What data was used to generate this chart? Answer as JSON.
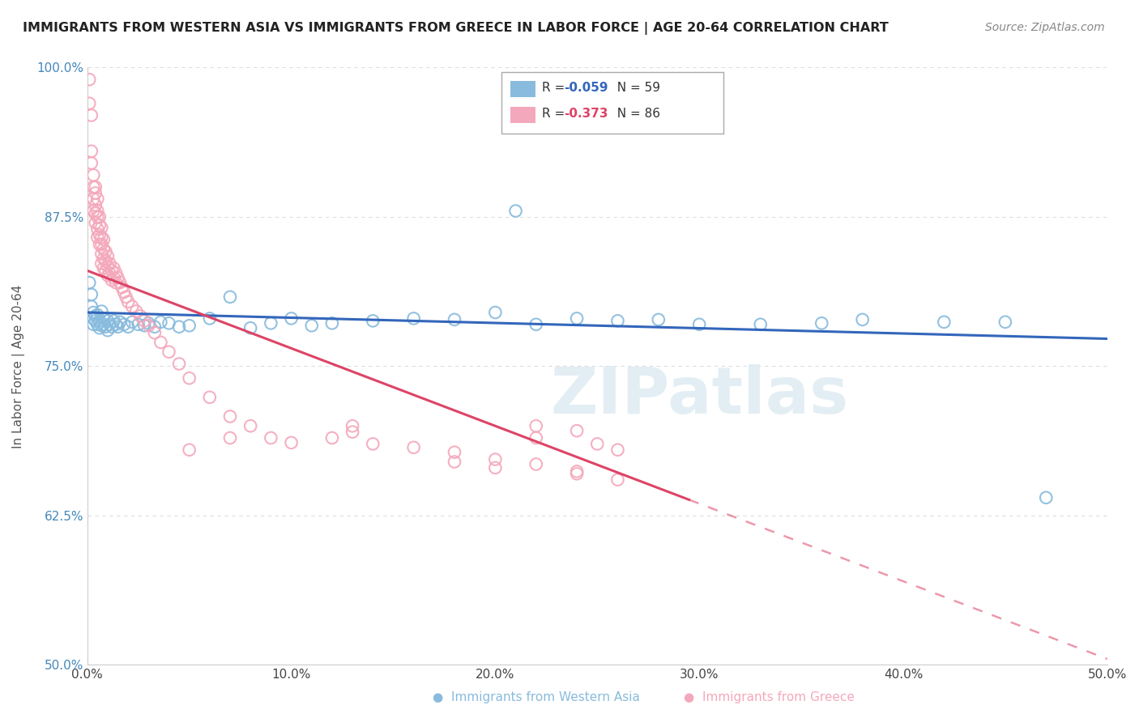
{
  "title": "IMMIGRANTS FROM WESTERN ASIA VS IMMIGRANTS FROM GREECE IN LABOR FORCE | AGE 20-64 CORRELATION CHART",
  "source": "Source: ZipAtlas.com",
  "ylabel": "In Labor Force | Age 20-64",
  "xlim": [
    0.0,
    0.5
  ],
  "ylim": [
    0.5,
    1.0
  ],
  "xticklabels": [
    "0.0%",
    "10.0%",
    "20.0%",
    "30.0%",
    "40.0%",
    "50.0%"
  ],
  "yticklabels": [
    "50.0%",
    "62.5%",
    "75.0%",
    "87.5%",
    "100.0%"
  ],
  "legend_r_n": [
    [
      "R = -0.059",
      "N = 59"
    ],
    [
      "R = -0.373",
      "N = 86"
    ]
  ],
  "color_blue": "#88bbdd",
  "color_pink": "#f4a8bb",
  "color_blue_line": "#3366bb",
  "color_pink_line": "#dd4466",
  "watermark": "ZIPatlas",
  "grid_color": "#dddddd",
  "background_color": "#ffffff",
  "blue_x": [
    0.001,
    0.002,
    0.002,
    0.003,
    0.003,
    0.003,
    0.004,
    0.004,
    0.005,
    0.005,
    0.006,
    0.006,
    0.007,
    0.007,
    0.008,
    0.008,
    0.009,
    0.01,
    0.01,
    0.011,
    0.012,
    0.013,
    0.014,
    0.015,
    0.016,
    0.018,
    0.02,
    0.022,
    0.025,
    0.028,
    0.03,
    0.033,
    0.036,
    0.04,
    0.045,
    0.05,
    0.06,
    0.07,
    0.08,
    0.09,
    0.1,
    0.11,
    0.12,
    0.14,
    0.16,
    0.18,
    0.2,
    0.22,
    0.24,
    0.26,
    0.28,
    0.3,
    0.33,
    0.36,
    0.38,
    0.42,
    0.45,
    0.21,
    0.47
  ],
  "blue_y": [
    0.82,
    0.81,
    0.8,
    0.79,
    0.795,
    0.785,
    0.792,
    0.788,
    0.785,
    0.793,
    0.788,
    0.782,
    0.796,
    0.784,
    0.79,
    0.785,
    0.783,
    0.788,
    0.78,
    0.785,
    0.783,
    0.788,
    0.785,
    0.783,
    0.787,
    0.785,
    0.783,
    0.787,
    0.785,
    0.784,
    0.786,
    0.783,
    0.787,
    0.786,
    0.783,
    0.784,
    0.79,
    0.808,
    0.782,
    0.786,
    0.79,
    0.784,
    0.786,
    0.788,
    0.79,
    0.789,
    0.795,
    0.785,
    0.79,
    0.788,
    0.789,
    0.785,
    0.785,
    0.786,
    0.789,
    0.787,
    0.787,
    0.88,
    0.64
  ],
  "pink_x": [
    0.001,
    0.001,
    0.002,
    0.002,
    0.002,
    0.003,
    0.003,
    0.003,
    0.003,
    0.004,
    0.004,
    0.004,
    0.004,
    0.004,
    0.005,
    0.005,
    0.005,
    0.005,
    0.005,
    0.006,
    0.006,
    0.006,
    0.006,
    0.007,
    0.007,
    0.007,
    0.007,
    0.007,
    0.008,
    0.008,
    0.008,
    0.008,
    0.009,
    0.009,
    0.009,
    0.01,
    0.01,
    0.01,
    0.011,
    0.011,
    0.012,
    0.012,
    0.013,
    0.013,
    0.014,
    0.014,
    0.015,
    0.016,
    0.017,
    0.018,
    0.019,
    0.02,
    0.022,
    0.024,
    0.026,
    0.028,
    0.03,
    0.033,
    0.036,
    0.04,
    0.045,
    0.05,
    0.06,
    0.07,
    0.08,
    0.09,
    0.1,
    0.12,
    0.14,
    0.16,
    0.18,
    0.2,
    0.22,
    0.24,
    0.22,
    0.24,
    0.22,
    0.13,
    0.13,
    0.25,
    0.26,
    0.05,
    0.07,
    0.18,
    0.2,
    0.24,
    0.26
  ],
  "pink_y": [
    0.97,
    0.99,
    0.93,
    0.92,
    0.96,
    0.91,
    0.9,
    0.89,
    0.88,
    0.9,
    0.895,
    0.885,
    0.878,
    0.87,
    0.89,
    0.88,
    0.875,
    0.865,
    0.858,
    0.875,
    0.868,
    0.86,
    0.852,
    0.866,
    0.858,
    0.852,
    0.844,
    0.836,
    0.856,
    0.848,
    0.84,
    0.832,
    0.846,
    0.838,
    0.83,
    0.842,
    0.834,
    0.826,
    0.836,
    0.828,
    0.83,
    0.822,
    0.832,
    0.824,
    0.828,
    0.82,
    0.824,
    0.82,
    0.816,
    0.812,
    0.808,
    0.804,
    0.8,
    0.796,
    0.792,
    0.788,
    0.784,
    0.778,
    0.77,
    0.762,
    0.752,
    0.74,
    0.724,
    0.708,
    0.7,
    0.69,
    0.686,
    0.69,
    0.685,
    0.682,
    0.678,
    0.672,
    0.668,
    0.662,
    0.7,
    0.696,
    0.69,
    0.7,
    0.695,
    0.685,
    0.68,
    0.68,
    0.69,
    0.67,
    0.665,
    0.66,
    0.655
  ],
  "blue_line_x": [
    0.0,
    0.5
  ],
  "blue_line_y": [
    0.795,
    0.773
  ],
  "pink_line_x0": 0.0,
  "pink_line_y0": 0.83,
  "pink_line_x_solid_end": 0.295,
  "pink_line_x_dash_end": 0.5,
  "pink_line_slope": -0.65
}
